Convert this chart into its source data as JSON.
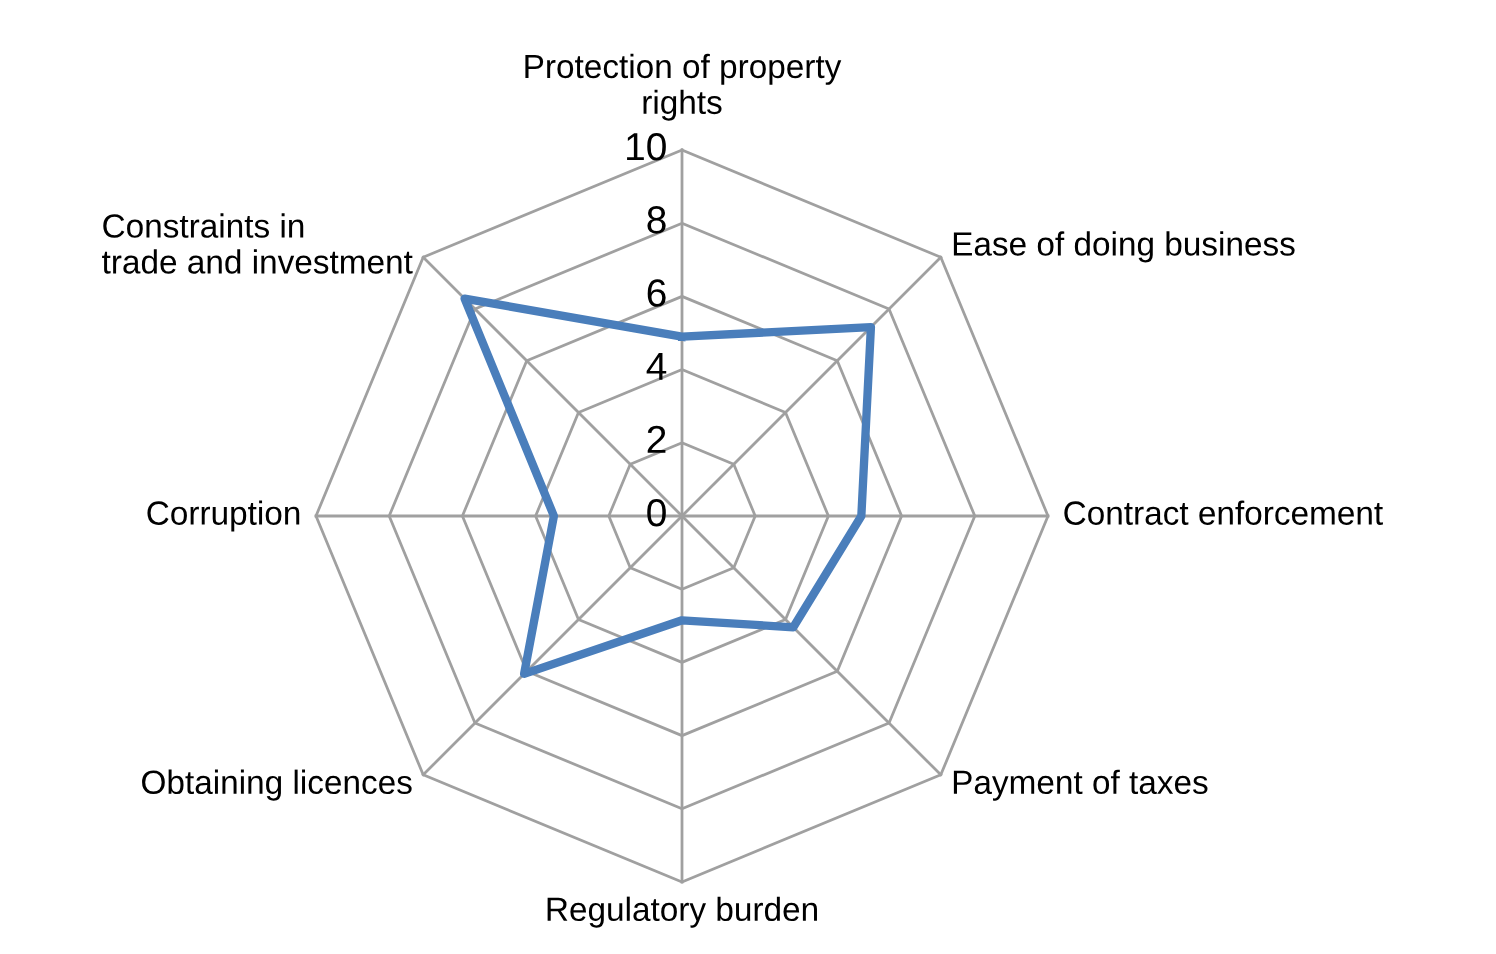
{
  "chart_data": {
    "type": "radar",
    "categories": [
      "Protection of property rights",
      "Ease of doing business",
      "Contract enforcement",
      "Payment of taxes",
      "Regulatory burden",
      "Obtaining licences",
      "Corruption",
      "Constraints in trade and investment"
    ],
    "series": [
      {
        "color": "#4a7ebb",
        "values": [
          4.9,
          7.3,
          4.9,
          4.3,
          2.85,
          6.1,
          3.5,
          8.4
        ]
      }
    ],
    "ylim": [
      0,
      10
    ],
    "yticks": [
      0,
      2,
      4,
      6,
      8,
      10
    ],
    "grid": true,
    "marker": "none",
    "line_style": "solid"
  }
}
